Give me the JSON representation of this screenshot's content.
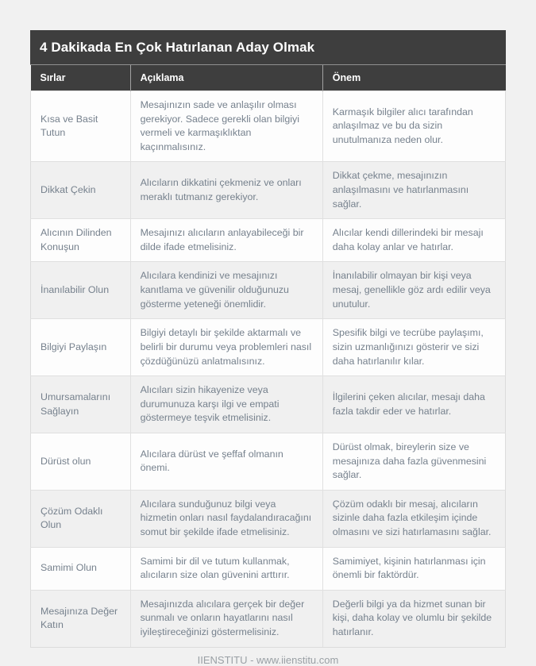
{
  "page": {
    "title": "4 Dakikada En Çok Hatırlanan Aday Olmak",
    "footer": "IIENSTITU - www.iienstitu.com"
  },
  "colors": {
    "page_bg": "#f1f1f1",
    "header_bg": "#3e3e3e",
    "header_text": "#ffffff",
    "row_bg": "#fdfdfd",
    "row_alt_bg": "#f0f0f0",
    "body_text": "#76818d",
    "border": "#e0e0e0",
    "footer_text": "#9aa0a5"
  },
  "table": {
    "columns": [
      "Sırlar",
      "Açıklama",
      "Önem"
    ],
    "rows": [
      {
        "secret": "Kısa ve Basit Tutun",
        "description": "Mesajınızın sade ve anlaşılır olması gerekiyor. Sadece gerekli olan bilgiyi vermeli ve karmaşıklıktan kaçınmalısınız.",
        "importance": "Karmaşık bilgiler alıcı tarafından anlaşılmaz ve bu da sizin unutulmanıza neden olur."
      },
      {
        "secret": "Dikkat Çekin",
        "description": "Alıcıların dikkatini çekmeniz ve onları meraklı tutmanız gerekiyor.",
        "importance": "Dikkat çekme, mesajınızın anlaşılmasını ve hatırlanmasını sağlar."
      },
      {
        "secret": "Alıcının Dilinden Konuşun",
        "description": "Mesajınızı alıcıların anlayabileceği bir dilde ifade etmelisiniz.",
        "importance": "Alıcılar kendi dillerindeki bir mesajı daha kolay anlar ve hatırlar."
      },
      {
        "secret": "İnanılabilir Olun",
        "description": "Alıcılara kendinizi ve mesajınızı kanıtlama ve güvenilir olduğunuzu gösterme yeteneği önemlidir.",
        "importance": "İnanılabilir olmayan bir kişi veya mesaj, genellikle göz ardı edilir veya unutulur."
      },
      {
        "secret": "Bilgiyi Paylaşın",
        "description": "Bilgiyi detaylı bir şekilde aktarmalı ve belirli bir durumu veya problemleri nasıl çözdüğünüzü anlatmalısınız.",
        "importance": "Spesifik bilgi ve tecrübe paylaşımı, sizin uzmanlığınızı gösterir ve sizi daha hatırlanılır kılar."
      },
      {
        "secret": "Umursamalarını Sağlayın",
        "description": "Alıcıları sizin hikayenize veya durumunuza karşı ilgi ve empati göstermeye teşvik etmelisiniz.",
        "importance": "İlgilerini çeken alıcılar, mesajı daha fazla takdir eder ve hatırlar."
      },
      {
        "secret": "Dürüst olun",
        "description": "Alıcılara dürüst ve şeffaf olmanın önemi.",
        "importance": "Dürüst olmak, bireylerin size ve mesajınıza daha fazla güvenmesini sağlar."
      },
      {
        "secret": "Çözüm Odaklı Olun",
        "description": "Alıcılara sunduğunuz bilgi veya hizmetin onları nasıl faydalandıracağını somut bir şekilde ifade etmelisiniz.",
        "importance": "Çözüm odaklı bir mesaj, alıcıların sizinle daha fazla etkileşim içinde olmasını ve sizi hatırlamasını sağlar."
      },
      {
        "secret": "Samimi Olun",
        "description": "Samimi bir dil ve tutum kullanmak, alıcıların size olan güvenini arttırır.",
        "importance": "Samimiyet, kişinin hatırlanması için önemli bir faktördür."
      },
      {
        "secret": "Mesajınıza Değer Katın",
        "description": "Mesajınızda alıcılara gerçek bir değer sunmalı ve onların hayatlarını nasıl iyileştireceğinizi göstermelisiniz.",
        "importance": "Değerli bilgi ya da hizmet sunan bir kişi, daha kolay ve olumlu bir şekilde hatırlanır."
      }
    ]
  }
}
